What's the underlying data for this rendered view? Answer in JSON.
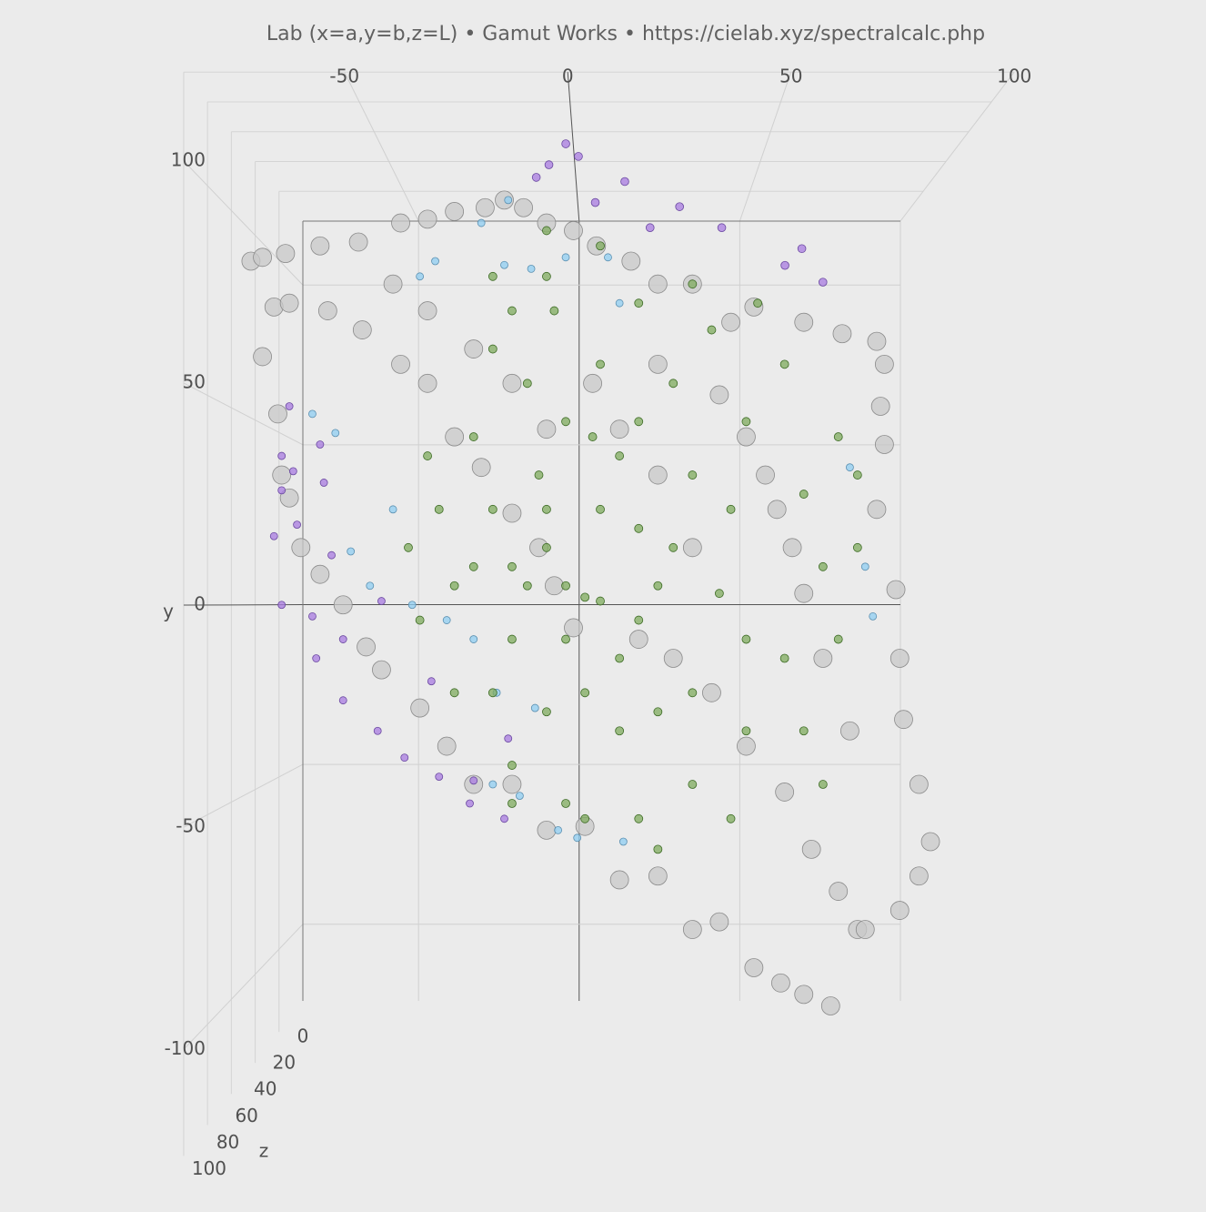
{
  "chart_data": {
    "type": "scatter3d",
    "title": "Lab (x=a,y=b,z=L)  •  Gamut Works  •  https://cielab.xyz/spectralcalc.php",
    "ylabel": "y",
    "zlabel": "z",
    "xlim": [
      -86,
      100
    ],
    "ylim": [
      -124,
      120
    ],
    "zlim": [
      0,
      100
    ],
    "xticks": [
      -50,
      0,
      50,
      100
    ],
    "yticks": [
      -100,
      -50,
      0,
      50,
      100
    ],
    "zticks": [
      0,
      20,
      40,
      60,
      80,
      100
    ],
    "grid": true,
    "series": [
      {
        "color": "#c8c8c8",
        "edge_color": "#8a8a8a",
        "marker_size": 20,
        "x": [
          -84,
          -81,
          -75,
          -66,
          -56,
          -45,
          -38,
          -31,
          -23,
          -18,
          -13,
          -7,
          0,
          6,
          15,
          22,
          31,
          41,
          47,
          60,
          70,
          79,
          81,
          80,
          81,
          79,
          84,
          85,
          86,
          90,
          93,
          90,
          85,
          74,
          67,
          60,
          54,
          47,
          38,
          31,
          22,
          12,
          3,
          -7,
          -16,
          -26,
          -33,
          -40,
          -50,
          -54,
          -60,
          -66,
          -71,
          -74,
          -76,
          -77,
          -81,
          -78,
          -74,
          -64,
          -55,
          -45,
          -38,
          -31,
          -24,
          -16,
          -9,
          -5,
          0,
          17,
          26,
          36,
          45,
          55,
          62,
          69,
          76,
          31,
          22,
          12,
          -16,
          -26,
          -38,
          -47,
          45,
          53,
          60,
          65,
          72,
          -7,
          5,
          22,
          38,
          50,
          57
        ],
        "y": [
          90,
          91,
          92,
          94,
          95,
          100,
          101,
          103,
          104,
          106,
          104,
          100,
          98,
          94,
          90,
          84,
          84,
          74,
          78,
          74,
          71,
          69,
          63,
          52,
          42,
          25,
          4,
          -14,
          -30,
          -47,
          -62,
          -71,
          -80,
          -85,
          -105,
          -102,
          -99,
          -95,
          -83,
          -85,
          -71,
          -72,
          -58,
          -59,
          -47,
          -47,
          -37,
          -27,
          -17,
          -11,
          0,
          8,
          15,
          28,
          34,
          50,
          65,
          78,
          79,
          77,
          72,
          63,
          58,
          44,
          36,
          24,
          15,
          5,
          -6,
          -9,
          -14,
          -23,
          -37,
          -49,
          -64,
          -75,
          -85,
          15,
          34,
          46,
          58,
          67,
          77,
          84,
          44,
          25,
          3,
          -14,
          -33,
          46,
          58,
          63,
          55,
          34,
          15
        ],
        "z": [
          50,
          50,
          50,
          50,
          50,
          50,
          50,
          50,
          50,
          50,
          50,
          50,
          50,
          50,
          50,
          50,
          50,
          50,
          50,
          50,
          50,
          50,
          50,
          50,
          50,
          50,
          50,
          50,
          50,
          50,
          50,
          50,
          50,
          50,
          50,
          50,
          50,
          50,
          50,
          50,
          50,
          50,
          50,
          50,
          50,
          50,
          50,
          50,
          50,
          50,
          50,
          50,
          50,
          50,
          50,
          50,
          50,
          50,
          50,
          50,
          50,
          50,
          50,
          50,
          50,
          50,
          50,
          50,
          50,
          50,
          50,
          50,
          50,
          50,
          50,
          50,
          50,
          50,
          50,
          50,
          50,
          50,
          50,
          50,
          50,
          50,
          50,
          50,
          50,
          50,
          50,
          50,
          50,
          50,
          50
        ]
      },
      {
        "color": "#8fcdf2",
        "edge_color": "#5a8fb0",
        "marker_size": 8,
        "x": [
          -17,
          -24,
          -36,
          -18,
          -11,
          -2,
          9,
          12,
          -40,
          -68,
          -62,
          -47,
          -58,
          -53,
          -42,
          -33,
          -26,
          -20,
          -10,
          -14,
          -4,
          1,
          13,
          72,
          76,
          78,
          -21
        ],
        "y": [
          106,
          100,
          90,
          89,
          88,
          91,
          91,
          79,
          86,
          50,
          45,
          25,
          14,
          5,
          0,
          -4,
          -9,
          -23,
          -27,
          -50,
          -59,
          -61,
          -62,
          36,
          10,
          -3,
          -47
        ],
        "z": [
          50,
          50,
          50,
          50,
          50,
          50,
          50,
          50,
          50,
          50,
          50,
          50,
          50,
          50,
          50,
          50,
          50,
          50,
          50,
          50,
          50,
          50,
          50,
          50,
          50,
          50,
          50
        ]
      },
      {
        "color": "#a87be0",
        "edge_color": "#6a48a0",
        "marker_size": 8,
        "x": [
          -1,
          2,
          -5,
          -8,
          6,
          13,
          26,
          19,
          36,
          55,
          51,
          60,
          -74,
          -66,
          -76,
          -73,
          -65,
          -76,
          -78,
          -72,
          -63,
          -76,
          -68,
          -60,
          -67,
          -60,
          -51,
          -44,
          -35,
          -27,
          -18,
          -26,
          -37,
          -17,
          -50
        ],
        "y": [
          110,
          107,
          105,
          102,
          96,
          101,
          95,
          90,
          90,
          85,
          81,
          77,
          52,
          42,
          39,
          35,
          32,
          30,
          18,
          21,
          13,
          0,
          -3,
          -9,
          -14,
          -25,
          -33,
          -40,
          -45,
          -52,
          -56,
          -46,
          -20,
          -35,
          1
        ],
        "z": [
          80,
          80,
          80,
          80,
          80,
          80,
          80,
          80,
          80,
          80,
          80,
          80,
          50,
          50,
          50,
          50,
          50,
          50,
          50,
          50,
          50,
          50,
          50,
          50,
          50,
          50,
          50,
          50,
          50,
          50,
          50,
          50,
          50,
          50,
          50
        ]
      },
      {
        "color": "#7fab5e",
        "edge_color": "#3d6b25",
        "marker_size": 9,
        "x": [
          3,
          -2,
          7,
          -7,
          17,
          -16,
          12,
          22,
          31,
          -21,
          -9,
          5,
          17,
          41,
          45,
          31,
          12,
          -7,
          -21,
          -31,
          -35,
          -26,
          -12,
          7,
          26,
          45,
          60,
          65,
          55,
          45,
          31,
          17,
          -2,
          -16,
          -31,
          -40,
          -43,
          -38,
          -21,
          -5,
          17,
          36,
          55,
          69,
          74,
          69,
          60,
          41,
          22,
          3,
          -16,
          -7,
          -16,
          31,
          48,
          74,
          65,
          -26,
          -12,
          -2,
          17,
          26,
          7,
          -7,
          -16,
          3,
          22,
          38,
          12,
          -2,
          -21,
          -7,
          7
        ],
        "y": [
          2,
          5,
          1,
          15,
          20,
          -9,
          -14,
          5,
          34,
          25,
          34,
          44,
          48,
          25,
          -9,
          -23,
          -33,
          -28,
          -23,
          5,
          25,
          44,
          58,
          63,
          58,
          48,
          29,
          10,
          -14,
          -33,
          -47,
          -56,
          -52,
          -42,
          -23,
          -4,
          15,
          39,
          67,
          77,
          79,
          72,
          63,
          44,
          15,
          -9,
          -33,
          -56,
          -64,
          -56,
          -52,
          86,
          77,
          84,
          79,
          34,
          -47,
          10,
          5,
          -9,
          -4,
          15,
          25,
          25,
          10,
          -23,
          -28,
          3,
          39,
          48,
          86,
          98,
          94
        ],
        "z": [
          50,
          50,
          50,
          50,
          50,
          50,
          50,
          50,
          50,
          50,
          50,
          50,
          50,
          50,
          50,
          50,
          50,
          50,
          50,
          50,
          50,
          50,
          50,
          50,
          50,
          50,
          50,
          50,
          50,
          50,
          50,
          50,
          50,
          50,
          50,
          50,
          50,
          50,
          50,
          50,
          50,
          50,
          50,
          50,
          50,
          50,
          50,
          50,
          50,
          50,
          50,
          50,
          50,
          50,
          50,
          50,
          50,
          50,
          50,
          50,
          50,
          50,
          50,
          50,
          50,
          50,
          50,
          50,
          50,
          50,
          50,
          50,
          50
        ]
      }
    ]
  }
}
